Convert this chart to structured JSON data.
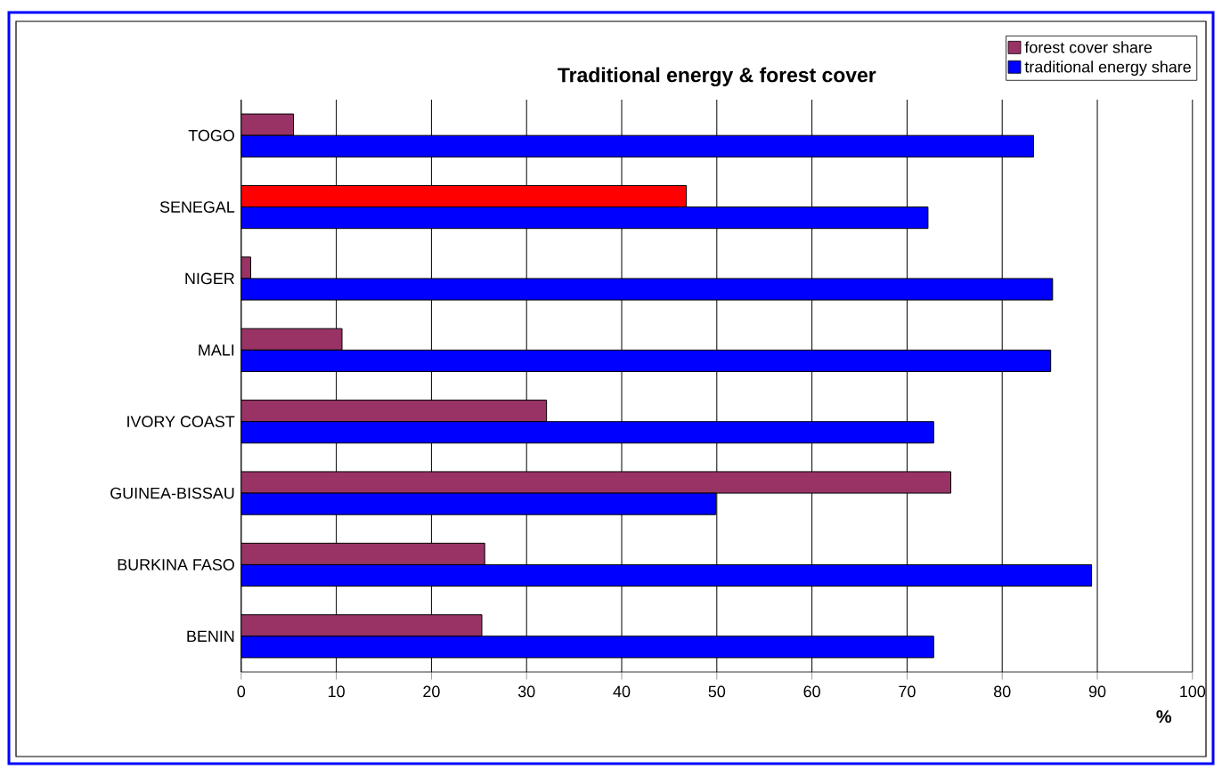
{
  "chart_data": {
    "type": "bar",
    "orientation": "horizontal",
    "title": "Traditional energy & forest cover",
    "xlabel": "%",
    "categories": [
      "TOGO",
      "SENEGAL",
      "NIGER",
      "MALI",
      "IVORY COAST",
      "GUINEA-BISSAU",
      "BURKINA FASO",
      "BENIN"
    ],
    "series": [
      {
        "name": "forest cover share",
        "color": "#993366",
        "colors": [
          "#993366",
          "#ff0000",
          "#993366",
          "#993366",
          "#993366",
          "#993366",
          "#993366",
          "#993366"
        ],
        "values": [
          5.5,
          46.8,
          1.0,
          10.6,
          32.1,
          74.6,
          25.6,
          25.3
        ]
      },
      {
        "name": "traditional energy share",
        "color": "#0000ff",
        "values": [
          83.3,
          72.2,
          85.3,
          85.1,
          72.8,
          49.9,
          89.4,
          72.8
        ]
      }
    ],
    "xlim": [
      0,
      100
    ],
    "xticks": [
      0,
      10,
      20,
      30,
      40,
      50,
      60,
      70,
      80,
      90,
      100
    ],
    "grid": "x",
    "legend": "top right"
  }
}
